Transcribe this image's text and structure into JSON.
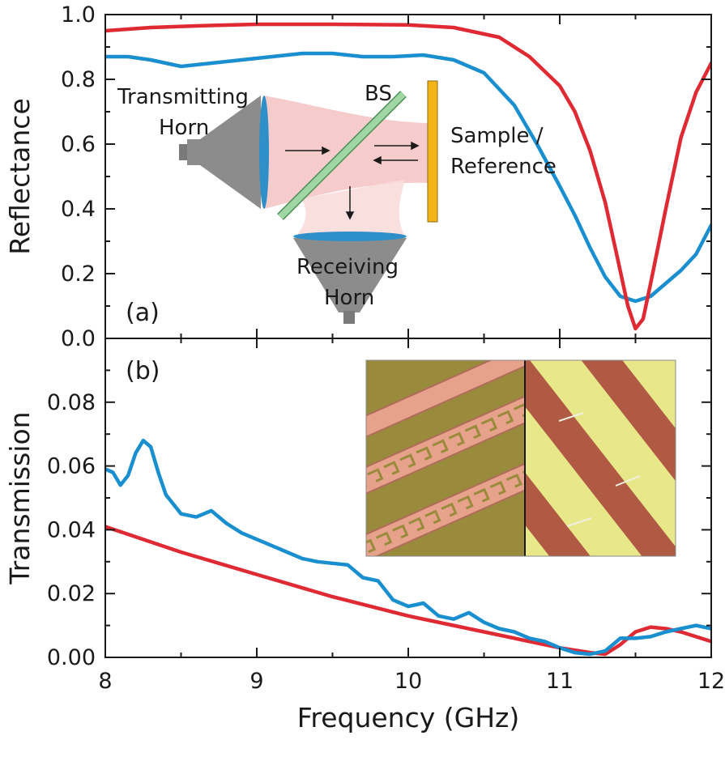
{
  "chart_data": [
    {
      "panel": "(a)",
      "type": "line",
      "ylabel": "Reflectance",
      "xlabel": "",
      "xlim": [
        8,
        12
      ],
      "ylim": [
        0.0,
        1.0
      ],
      "yticks": [
        "0.0",
        "0.2",
        "0.4",
        "0.6",
        "0.8",
        "1.0"
      ],
      "colors": {
        "red": "#e02a33",
        "blue": "#1a8fd0"
      },
      "series": [
        {
          "name": "red",
          "x": [
            8.0,
            8.3,
            8.6,
            9.0,
            9.5,
            10.0,
            10.3,
            10.6,
            10.8,
            11.0,
            11.1,
            11.2,
            11.3,
            11.38,
            11.45,
            11.5,
            11.55,
            11.6,
            11.7,
            11.8,
            11.9,
            12.0
          ],
          "values": [
            0.95,
            0.96,
            0.965,
            0.97,
            0.97,
            0.968,
            0.96,
            0.93,
            0.87,
            0.78,
            0.7,
            0.58,
            0.42,
            0.25,
            0.1,
            0.03,
            0.06,
            0.17,
            0.4,
            0.62,
            0.76,
            0.85
          ]
        },
        {
          "name": "blue",
          "x": [
            8.0,
            8.15,
            8.3,
            8.5,
            8.7,
            8.9,
            9.1,
            9.3,
            9.5,
            9.7,
            9.9,
            10.1,
            10.3,
            10.5,
            10.7,
            10.85,
            11.0,
            11.1,
            11.2,
            11.3,
            11.4,
            11.5,
            11.6,
            11.7,
            11.8,
            11.9,
            12.0
          ],
          "values": [
            0.87,
            0.87,
            0.86,
            0.84,
            0.85,
            0.86,
            0.87,
            0.88,
            0.88,
            0.87,
            0.87,
            0.875,
            0.86,
            0.82,
            0.72,
            0.6,
            0.47,
            0.38,
            0.28,
            0.19,
            0.13,
            0.115,
            0.13,
            0.17,
            0.21,
            0.26,
            0.35
          ]
        }
      ],
      "inset": {
        "transmitting_horn": [
          "Transmitting",
          "Horn"
        ],
        "beam_splitter": "BS",
        "sample": [
          "Sample /",
          "Reference"
        ],
        "receiving_horn": [
          "Receiving",
          "Horn"
        ],
        "colors": {
          "horn": "#8c8c8c",
          "lens": "#2f8fc8",
          "beam": "#f4c2c2",
          "splitter": "#9ed6a4",
          "sample": "#f2b416"
        }
      }
    },
    {
      "panel": "(b)",
      "type": "line",
      "ylabel": "Transmission",
      "xlabel": "Frequency (GHz)",
      "xlim": [
        8,
        12
      ],
      "ylim": [
        0.0,
        0.1
      ],
      "xticks": [
        "8",
        "9",
        "10",
        "11",
        "12"
      ],
      "yticks": [
        "0.00",
        "0.02",
        "0.04",
        "0.06",
        "0.08"
      ],
      "series": [
        {
          "name": "red",
          "x": [
            8.0,
            8.5,
            9.0,
            9.5,
            10.0,
            10.5,
            11.0,
            11.2,
            11.3,
            11.4,
            11.5,
            11.6,
            11.7,
            11.8,
            12.0
          ],
          "values": [
            0.041,
            0.033,
            0.026,
            0.019,
            0.013,
            0.008,
            0.003,
            0.0015,
            0.001,
            0.004,
            0.008,
            0.0095,
            0.009,
            0.008,
            0.005
          ]
        },
        {
          "name": "blue",
          "x": [
            8.0,
            8.05,
            8.1,
            8.15,
            8.2,
            8.25,
            8.3,
            8.35,
            8.4,
            8.5,
            8.6,
            8.7,
            8.8,
            8.9,
            9.0,
            9.1,
            9.2,
            9.3,
            9.4,
            9.5,
            9.6,
            9.7,
            9.8,
            9.9,
            10.0,
            10.1,
            10.2,
            10.3,
            10.4,
            10.5,
            10.6,
            10.7,
            10.8,
            10.9,
            11.0,
            11.1,
            11.2,
            11.3,
            11.4,
            11.5,
            11.6,
            11.7,
            11.8,
            11.9,
            12.0
          ],
          "values": [
            0.059,
            0.058,
            0.054,
            0.057,
            0.064,
            0.068,
            0.066,
            0.058,
            0.051,
            0.045,
            0.044,
            0.046,
            0.042,
            0.039,
            0.037,
            0.035,
            0.033,
            0.031,
            0.03,
            0.0295,
            0.029,
            0.025,
            0.024,
            0.018,
            0.016,
            0.017,
            0.013,
            0.012,
            0.014,
            0.011,
            0.009,
            0.008,
            0.006,
            0.005,
            0.003,
            0.0015,
            0.001,
            0.002,
            0.006,
            0.006,
            0.0065,
            0.008,
            0.009,
            0.01,
            0.009
          ]
        }
      ],
      "inset": {
        "left_photo": {
          "background": "#9a8a3c",
          "pattern": "#e7a28c"
        },
        "right_photo": {
          "background": "#e8e88a",
          "stripe": "#b05a44"
        }
      }
    }
  ]
}
